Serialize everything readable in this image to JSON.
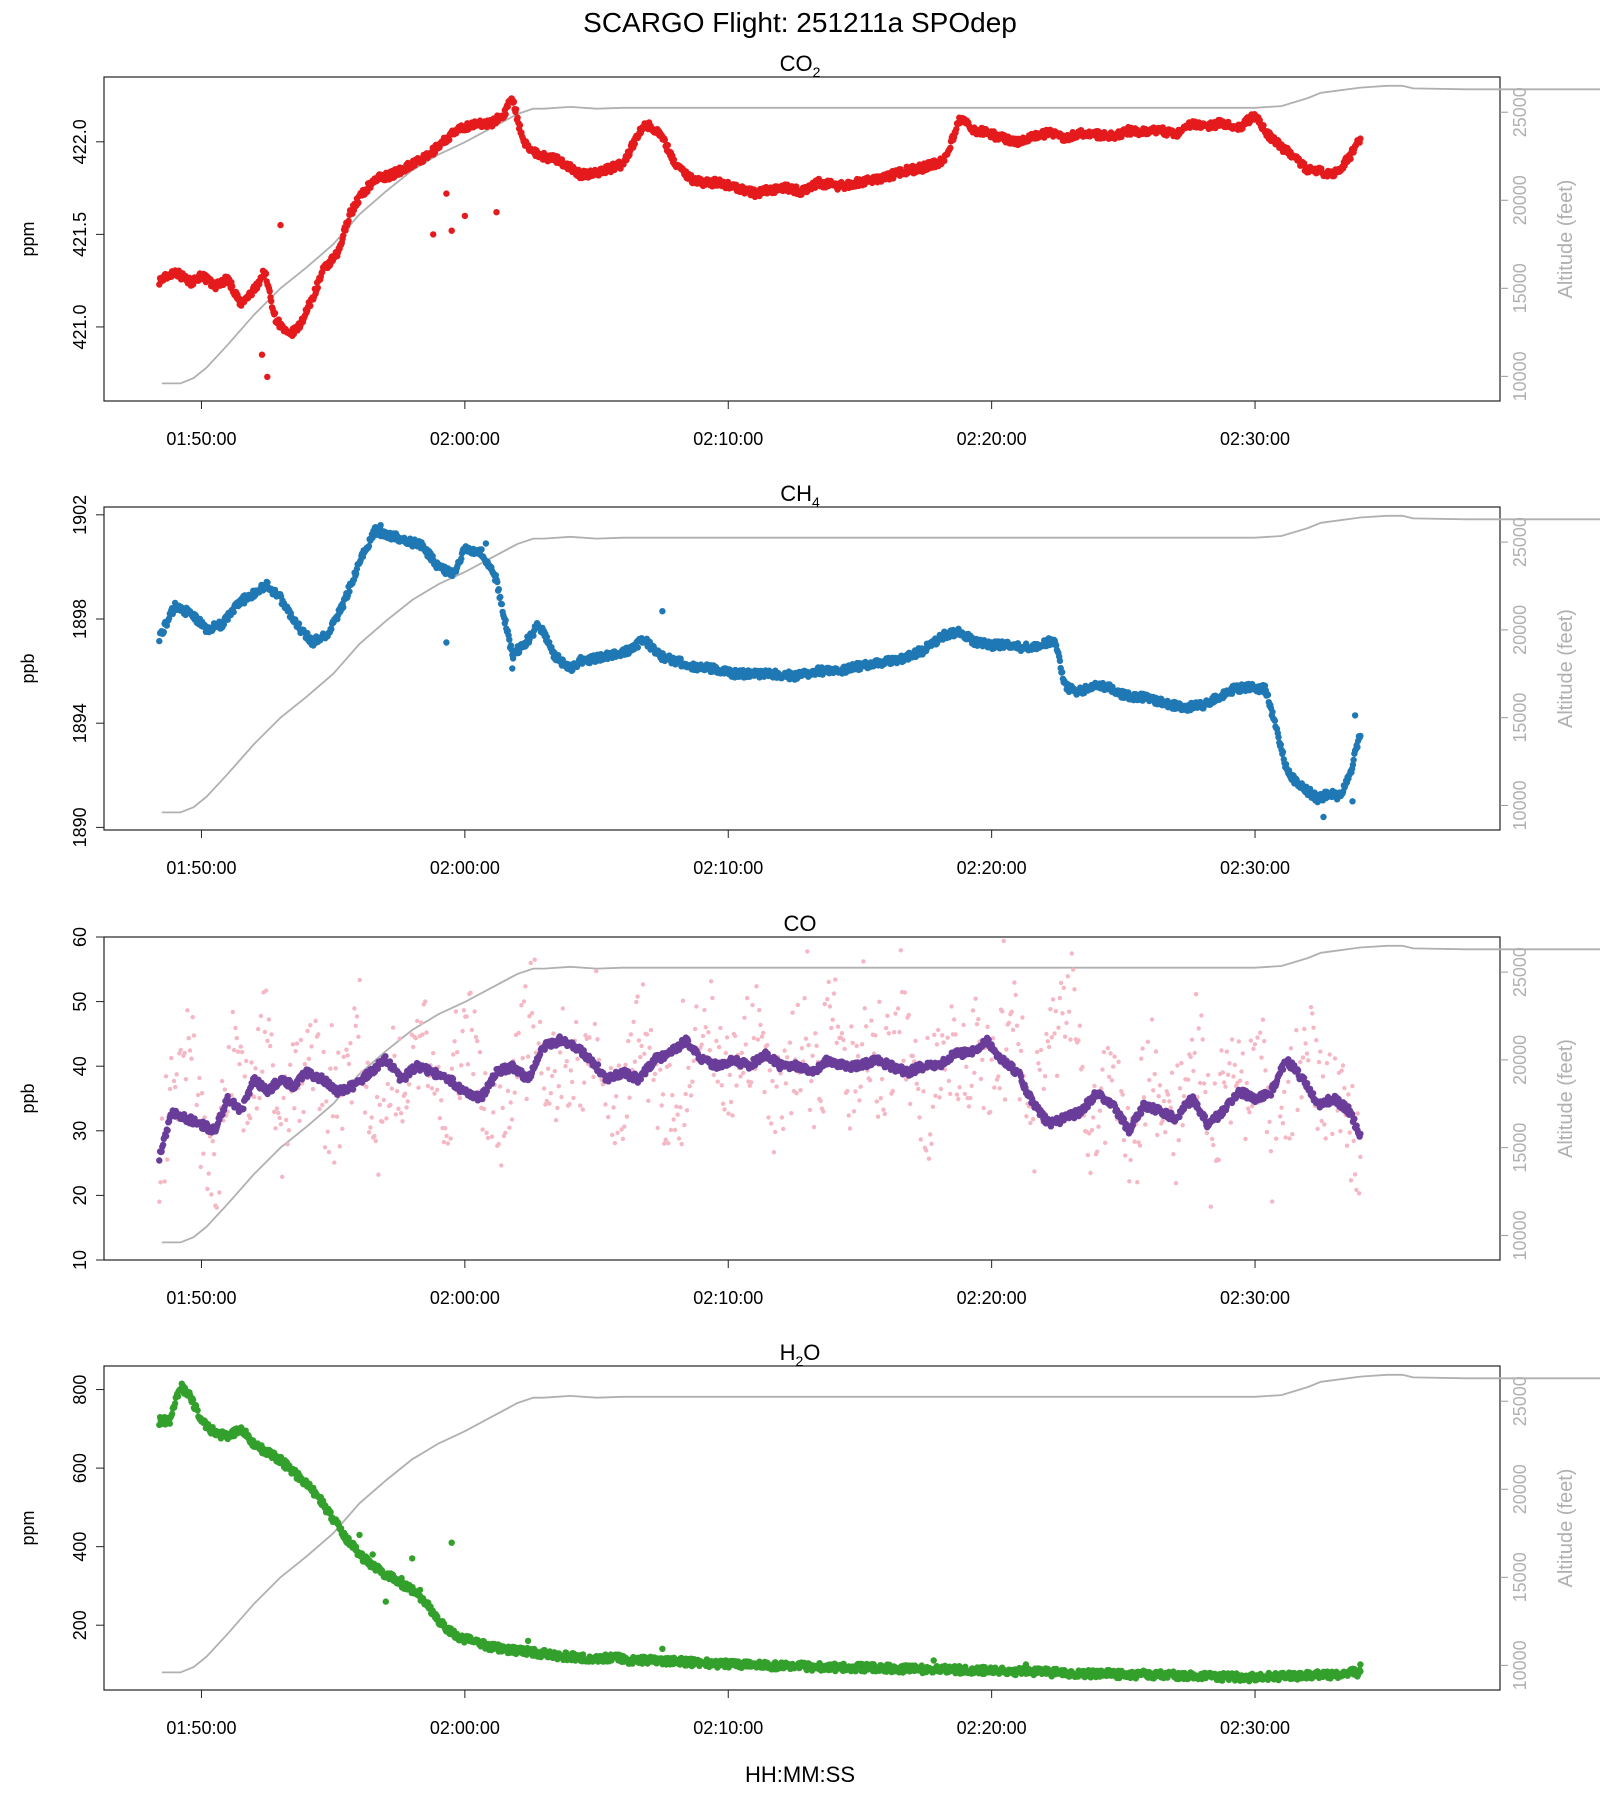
{
  "figure": {
    "title": "SCARGO Flight: 251211a  SPOdep",
    "xlabel": "HH:MM:SS",
    "x_ticks": [
      "01:50:00",
      "02:00:00",
      "02:10:00",
      "02:20:00",
      "02:30:00"
    ]
  },
  "altitude_series": {
    "name": "Altitude",
    "color": "#b0b0b0",
    "axis_label": "Altitude (feet)",
    "ticks": [
      "10000",
      "15000",
      "20000",
      "25000"
    ],
    "x_minutes": [
      108.5,
      109.2,
      109.7,
      110.2,
      111,
      112,
      113,
      114,
      115,
      116,
      117,
      118,
      119,
      120,
      121,
      122,
      122.6,
      123,
      124,
      125,
      126,
      130,
      140,
      150,
      151,
      152,
      152.5,
      154,
      155,
      155.6,
      156,
      158,
      160,
      170,
      177.5
    ],
    "y_feet": [
      9600,
      9600,
      9900,
      10500,
      11800,
      13500,
      15000,
      16200,
      17500,
      19200,
      20500,
      21700,
      22600,
      23300,
      24100,
      24900,
      25200,
      25200,
      25300,
      25200,
      25250,
      25250,
      25250,
      25250,
      25350,
      25800,
      26100,
      26400,
      26500,
      26500,
      26350,
      26300,
      26300,
      26300,
      26300
    ]
  },
  "chart_data": [
    {
      "type": "scatter",
      "title_main": "CO",
      "title_sub": "2",
      "ylabel": "ppm",
      "ylim": [
        420.6,
        422.35
      ],
      "y_ticks": [
        "421.0",
        "421.5",
        "422.0"
      ],
      "x_unit": "minutes after 00:00",
      "xlim": [
        106.3,
        159.3
      ],
      "series": [
        {
          "color": "#e41a1c",
          "x_minutes": [
            108.4,
            109,
            109.6,
            110,
            110.5,
            111,
            111.5,
            112,
            112.4,
            112.8,
            113.3,
            113.7,
            114.2,
            114.6,
            115.2,
            115.6,
            116,
            116.6,
            117.2,
            117.6,
            118,
            118.6,
            119,
            119.6,
            120,
            120.6,
            121,
            121.5,
            121.8,
            122.2,
            122.6,
            123,
            123.6,
            124.4,
            124.8,
            125.4,
            126,
            126.8,
            127.4,
            128,
            128.6,
            129,
            129.6,
            130.4,
            131,
            131.6,
            132.2,
            132.8,
            133.4,
            134.2,
            135,
            135.8,
            136.6,
            137.4,
            138.2,
            138.8,
            139.4,
            139.8,
            140.4,
            141,
            141.6,
            142.2,
            142.8,
            143.4,
            144,
            144.6,
            145.2,
            145.8,
            146.4,
            147,
            147.6,
            148.2,
            148.8,
            149.4,
            150,
            150.6,
            151.2,
            151.6,
            152,
            152.4,
            152.8,
            153.2,
            153.6,
            154
          ],
          "y_ppm": [
            421.25,
            421.3,
            421.24,
            421.28,
            421.22,
            421.26,
            421.12,
            421.2,
            421.3,
            421.05,
            420.95,
            421.0,
            421.15,
            421.3,
            421.4,
            421.6,
            421.7,
            421.8,
            421.82,
            421.85,
            421.88,
            421.92,
            421.98,
            422.05,
            422.08,
            422.1,
            422.1,
            422.15,
            422.25,
            422.0,
            421.95,
            421.92,
            421.9,
            421.82,
            421.83,
            421.85,
            421.88,
            422.1,
            422.05,
            421.88,
            421.8,
            421.78,
            421.78,
            421.75,
            421.72,
            421.74,
            421.75,
            421.73,
            421.78,
            421.76,
            421.78,
            421.8,
            421.84,
            421.86,
            421.9,
            422.12,
            422.06,
            422.05,
            422.02,
            422.0,
            422.03,
            422.05,
            422.02,
            422.05,
            422.04,
            422.03,
            422.06,
            422.05,
            422.06,
            422.04,
            422.1,
            422.09,
            422.1,
            422.08,
            422.14,
            422.02,
            421.95,
            421.9,
            421.85,
            421.85,
            421.82,
            421.85,
            421.92,
            422.02
          ],
          "outliers_x": [
            112.5,
            112.3,
            118.8,
            119.3,
            119.5,
            113.0,
            120.0,
            121.2
          ],
          "outliers_y": [
            420.73,
            420.85,
            421.5,
            421.72,
            421.52,
            421.55,
            421.6,
            421.62
          ]
        }
      ]
    },
    {
      "type": "scatter",
      "title_main": "CH",
      "title_sub": "4",
      "ylabel": "ppb",
      "ylim": [
        1889.9,
        1902.3
      ],
      "y_ticks": [
        "1890",
        "1894",
        "1898",
        "1902"
      ],
      "x_unit": "minutes after 00:00",
      "xlim": [
        106.3,
        159.3
      ],
      "series": [
        {
          "color": "#1f78b4",
          "x_minutes": [
            108.4,
            109,
            109.6,
            110.2,
            110.8,
            111.4,
            112,
            112.5,
            113,
            113.6,
            114.2,
            114.8,
            115.4,
            116,
            116.6,
            117.2,
            117.8,
            118.4,
            119,
            119.6,
            120,
            120.6,
            121.2,
            121.8,
            122.4,
            122.8,
            123.4,
            124,
            124.4,
            125,
            125.6,
            126.2,
            126.8,
            127.4,
            128,
            128.6,
            129.4,
            130.2,
            131,
            131.8,
            132.6,
            133.4,
            134.2,
            135,
            135.8,
            136.6,
            137.4,
            138.2,
            138.8,
            139.4,
            140,
            140.6,
            141.2,
            141.8,
            142.4,
            142.8,
            143.2,
            143.8,
            144.4,
            145,
            145.6,
            146.2,
            146.8,
            147.4,
            148,
            148.6,
            149.2,
            149.8,
            150.4,
            150.8,
            151.2,
            151.6,
            152,
            152.4,
            152.8,
            153.2,
            153.6,
            154
          ],
          "y_ppb": [
            1897.3,
            1898.5,
            1898.2,
            1897.6,
            1897.8,
            1898.6,
            1899.0,
            1899.3,
            1898.8,
            1897.8,
            1897.1,
            1897.4,
            1898.6,
            1900.2,
            1901.4,
            1901.2,
            1901.0,
            1900.8,
            1900.0,
            1899.7,
            1900.7,
            1900.6,
            1899.5,
            1896.6,
            1897.2,
            1897.8,
            1896.6,
            1896.1,
            1896.4,
            1896.5,
            1896.6,
            1896.8,
            1897.2,
            1896.6,
            1896.4,
            1896.2,
            1896.1,
            1895.9,
            1895.9,
            1895.9,
            1895.8,
            1896.0,
            1896.0,
            1896.2,
            1896.3,
            1896.5,
            1896.8,
            1897.4,
            1897.5,
            1897.1,
            1897.0,
            1897.0,
            1896.9,
            1897.0,
            1897.2,
            1895.4,
            1895.2,
            1895.4,
            1895.4,
            1895.1,
            1895.0,
            1894.9,
            1894.7,
            1894.6,
            1894.7,
            1895.0,
            1895.3,
            1895.4,
            1895.3,
            1893.8,
            1892.2,
            1891.7,
            1891.4,
            1891.1,
            1891.3,
            1891.2,
            1892.0,
            1893.6
          ],
          "outliers_x": [
            116.8,
            119.3,
            120.8,
            121.8,
            127.5,
            152.6,
            153.7,
            153.8
          ],
          "outliers_y": [
            1901.6,
            1897.1,
            1900.9,
            1896.1,
            1898.3,
            1890.4,
            1891.0,
            1894.3
          ]
        }
      ]
    },
    {
      "type": "scatter",
      "title_main": "CO",
      "title_sub": "",
      "ylabel": "ppb",
      "ylim": [
        10,
        60
      ],
      "y_ticks": [
        "10",
        "20",
        "30",
        "40",
        "50",
        "60"
      ],
      "x_unit": "minutes after 00:00",
      "xlim": [
        106.3,
        159.3
      ],
      "series": [
        {
          "color": "#f5b7c4",
          "x_minutes": [
            108.4,
            109,
            109.6,
            110,
            110.6,
            111.2,
            111.8,
            112.4,
            113,
            113.6,
            114.2,
            114.8,
            115.4,
            116,
            116.6,
            117.2,
            117.8,
            118.4,
            119,
            119.6,
            120.2,
            120.8,
            121.4,
            122,
            122.6,
            123.2,
            123.8,
            124.4,
            125,
            125.6,
            126.2,
            126.8,
            127.4,
            128,
            128.6,
            129.2,
            129.8,
            130.4,
            131,
            131.6,
            132.2,
            132.8,
            133.4,
            134,
            134.6,
            135.2,
            135.8,
            136.4,
            137,
            137.6,
            138.2,
            138.8,
            139.4,
            140,
            140.6,
            141.2,
            141.8,
            142.4,
            143,
            143.6,
            144.2,
            144.8,
            145.4,
            146,
            146.6,
            147.2,
            147.8,
            148.4,
            149,
            149.6,
            150.2,
            150.8,
            151.4,
            152,
            152.6,
            153.2,
            153.8,
            154
          ],
          "y_ppb": [
            27,
            36,
            44,
            30,
            25,
            41,
            33,
            47,
            29,
            38,
            43,
            31,
            36,
            46,
            28,
            40,
            35,
            48,
            32,
            38,
            44,
            34,
            29,
            41,
            52,
            36,
            42,
            39,
            47,
            34,
            40,
            45,
            35,
            31,
            43,
            49,
            37,
            41,
            46,
            33,
            39,
            44,
            36,
            50,
            38,
            42,
            35,
            47,
            40,
            33,
            45,
            39,
            43,
            37,
            48,
            41,
            36,
            44,
            51,
            30,
            35,
            38,
            26,
            42,
            31,
            37,
            45,
            28,
            40,
            34,
            43,
            30,
            36,
            46,
            32,
            38,
            27,
            23
          ]
        },
        {
          "color": "#6a3d9a",
          "x_minutes": [
            108.4,
            108.9,
            109.4,
            110,
            110.5,
            111,
            111.5,
            112,
            112.5,
            113,
            113.5,
            114,
            114.6,
            115.2,
            115.8,
            116.4,
            117,
            117.6,
            118.2,
            118.8,
            119.4,
            120,
            120.6,
            121.2,
            121.8,
            122.4,
            123,
            123.6,
            124.2,
            124.8,
            125.4,
            126,
            126.6,
            127.2,
            127.8,
            128.4,
            129,
            129.6,
            130.2,
            130.8,
            131.4,
            132,
            132.6,
            133.2,
            133.8,
            134.4,
            135,
            135.6,
            136.2,
            136.8,
            137.4,
            138,
            138.6,
            139.2,
            139.8,
            140.4,
            141,
            141.6,
            142.2,
            142.8,
            143.4,
            144,
            144.6,
            145.2,
            145.8,
            146.4,
            147,
            147.6,
            148.2,
            148.8,
            149.4,
            150,
            150.6,
            151.2,
            151.8,
            152.4,
            153,
            153.6,
            154
          ],
          "y_ppb": [
            26,
            33,
            32,
            31,
            30,
            35,
            33,
            38,
            36,
            38,
            37,
            39,
            38,
            36,
            37,
            39,
            41,
            38,
            40,
            39,
            38,
            36,
            35,
            39,
            40,
            38,
            43,
            44,
            43,
            41,
            38,
            39,
            38,
            41,
            42,
            44,
            41,
            40,
            41,
            40,
            42,
            40,
            40,
            39,
            41,
            40,
            40,
            41,
            40,
            39,
            40,
            40,
            42,
            42,
            44,
            41,
            39,
            34,
            31,
            32,
            33,
            36,
            34,
            30,
            34,
            33,
            32,
            35,
            31,
            33,
            36,
            35,
            36,
            41,
            38,
            34,
            35,
            33,
            29
          ]
        }
      ]
    },
    {
      "type": "scatter",
      "title_main": "H",
      "title_sub": "2",
      "title_suffix": "O",
      "ylabel": "ppm",
      "ylim": [
        35,
        860
      ],
      "y_ticks": [
        "200",
        "400",
        "600",
        "800"
      ],
      "x_unit": "minutes after 00:00",
      "xlim": [
        106.3,
        159.3
      ],
      "series": [
        {
          "color": "#33a02c",
          "x_minutes": [
            108.4,
            108.8,
            109.2,
            109.6,
            110,
            110.5,
            111,
            111.5,
            112,
            112.5,
            113,
            113.5,
            114,
            114.5,
            115,
            115.5,
            116,
            116.5,
            117,
            117.5,
            118,
            118.5,
            119,
            119.5,
            120,
            120.5,
            121,
            121.5,
            122,
            122.6,
            123.2,
            124,
            124.8,
            125.6,
            126.4,
            127.2,
            128,
            129,
            130,
            131,
            132,
            133,
            134,
            135,
            136,
            137,
            138,
            139,
            140,
            141,
            142,
            143,
            144,
            145,
            146,
            147,
            148,
            149,
            150,
            151,
            152,
            153,
            153.6,
            154
          ],
          "y_ppm": [
            720,
            720,
            810,
            780,
            720,
            690,
            680,
            700,
            660,
            640,
            620,
            590,
            560,
            520,
            470,
            420,
            380,
            350,
            330,
            310,
            290,
            260,
            210,
            180,
            165,
            155,
            145,
            140,
            135,
            130,
            125,
            120,
            115,
            118,
            110,
            112,
            108,
            104,
            100,
            98,
            97,
            95,
            93,
            92,
            90,
            88,
            88,
            86,
            84,
            82,
            80,
            78,
            76,
            75,
            74,
            73,
            70,
            68,
            67,
            70,
            72,
            74,
            80,
            78
          ],
          "outliers_x": [
            116,
            116.5,
            117,
            118,
            119.5,
            117.6,
            118.3,
            122.4,
            127.5,
            137.8,
            141.3,
            154
          ],
          "outliers_y": [
            430,
            380,
            260,
            370,
            410,
            320,
            290,
            160,
            140,
            110,
            100,
            100
          ]
        }
      ]
    }
  ]
}
